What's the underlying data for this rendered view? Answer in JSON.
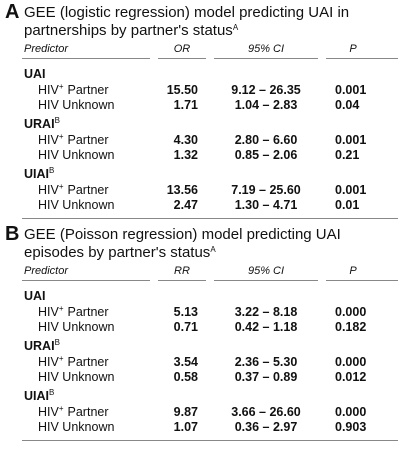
{
  "panels": [
    {
      "letter": "A",
      "title": "GEE (logistic regression) model predicting UAI in partnerships by partner's status",
      "title_sup": "A",
      "columns": [
        "Predictor",
        "OR",
        "95% CI",
        "P"
      ],
      "groups": [
        {
          "name": "UAI",
          "rows": [
            {
              "label": "HIV",
              "sup": "+",
              "rest": "Partner",
              "values": [
                "15.50",
                "9.12 – 26.35",
                "0.001"
              ]
            },
            {
              "label": "HIV Unknown",
              "values": [
                "1.71",
                "1.04 – 2.83",
                "0.04"
              ]
            }
          ]
        },
        {
          "name": "URAI",
          "sup": "B",
          "rows": [
            {
              "label": "HIV",
              "sup": "+",
              "rest": "Partner",
              "values": [
                "4.30",
                "2.80 – 6.60",
                "0.001"
              ]
            },
            {
              "label": "HIV Unknown",
              "values": [
                "1.32",
                "0.85 – 2.06",
                "0.21"
              ]
            }
          ]
        },
        {
          "name": "UIAI",
          "sup": "B",
          "rows": [
            {
              "label": "HIV",
              "sup": "+",
              "rest": "Partner",
              "values": [
                "13.56",
                "7.19 – 25.60",
                "0.001"
              ]
            },
            {
              "label": "HIV Unknown",
              "values": [
                "2.47",
                "1.30 – 4.71",
                "0.01"
              ]
            }
          ]
        }
      ]
    },
    {
      "letter": "B",
      "title": "GEE (Poisson regression) model predicting UAI episodes by partner's status",
      "title_sup": "A",
      "columns": [
        "Predictor",
        "RR",
        "95% CI",
        "P"
      ],
      "groups": [
        {
          "name": "UAI",
          "rows": [
            {
              "label": "HIV",
              "sup": "+",
              "rest": "Partner",
              "values": [
                "5.13",
                "3.22 – 8.18",
                "0.000"
              ]
            },
            {
              "label": "HIV Unknown",
              "values": [
                "0.71",
                "0.42 – 1.18",
                "0.182"
              ]
            }
          ]
        },
        {
          "name": "URAI",
          "sup": "B",
          "rows": [
            {
              "label": "HIV",
              "sup": "+",
              "rest": "Partner",
              "values": [
                "3.54",
                "2.36 – 5.30",
                "0.000"
              ]
            },
            {
              "label": "HIV Unknown",
              "values": [
                "0.58",
                "0.37 – 0.89",
                "0.012"
              ]
            }
          ]
        },
        {
          "name": "UIAI",
          "sup": "B",
          "rows": [
            {
              "label": "HIV",
              "sup": "+",
              "rest": "Partner",
              "values": [
                "9.87",
                "3.66 – 26.60",
                "0.000"
              ]
            },
            {
              "label": "HIV Unknown",
              "values": [
                "1.07",
                "0.36 – 2.97",
                "0.903"
              ]
            }
          ]
        }
      ]
    }
  ]
}
